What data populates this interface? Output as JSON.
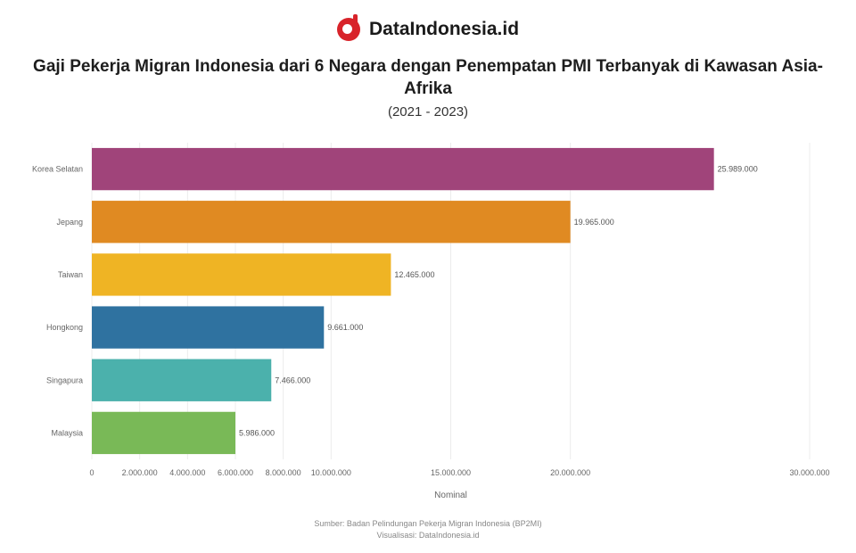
{
  "brand": {
    "name": "DataIndonesia.id",
    "logo_icon": "dataindonesia-logo-icon"
  },
  "header": {
    "title": "Gaji Pekerja Migran Indonesia dari 6 Negara dengan Penempatan PMI Terbanyak di Kawasan Asia-Afrika",
    "subtitle": "(2021 - 2023)"
  },
  "source": {
    "line1": "Sumber: Badan Pelindungan Pekerja Migran Indonesia (BP2MI)",
    "line2": "Visualisasi: DataIndonesia.id"
  },
  "colors": {
    "Korea Selatan": "#a0447a",
    "Jepang": "#e08a22",
    "Taiwan": "#efb424",
    "Hongkong": "#2f72a0",
    "Singapura": "#4bb1ac",
    "Malaysia": "#79b957"
  },
  "chart_data": {
    "type": "bar",
    "orientation": "horizontal",
    "categories": [
      "Korea Selatan",
      "Jepang",
      "Taiwan",
      "Hongkong",
      "Singapura",
      "Malaysia"
    ],
    "values": [
      26000000,
      20000000,
      12500000,
      9700000,
      7500000,
      6000000
    ],
    "value_labels": [
      "25.989.000",
      "19.965.000",
      "12.465.000",
      "9.661.000",
      "7.466.000",
      "5.986.000"
    ],
    "xlabel": "Nominal",
    "xlim": [
      0,
      30000000
    ],
    "x_ticks": [
      0,
      2000000,
      4000000,
      6000000,
      8000000,
      10000000,
      15000000,
      20000000,
      30000000
    ],
    "x_tick_labels": [
      "0",
      "2.000.000",
      "4.000.000",
      "6.000.000",
      "8.000.000",
      "10.000.000",
      "15.000.000",
      "20.000.000",
      "30.000.000"
    ],
    "grid": true,
    "legend": "none"
  }
}
